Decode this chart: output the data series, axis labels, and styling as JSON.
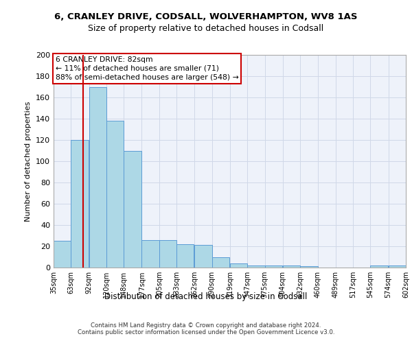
{
  "title1": "6, CRANLEY DRIVE, CODSALL, WOLVERHAMPTON, WV8 1AS",
  "title2": "Size of property relative to detached houses in Codsall",
  "xlabel": "Distribution of detached houses by size in Codsall",
  "ylabel": "Number of detached properties",
  "footer1": "Contains HM Land Registry data © Crown copyright and database right 2024.",
  "footer2": "Contains public sector information licensed under the Open Government Licence v3.0.",
  "annotation_title": "6 CRANLEY DRIVE: 82sqm",
  "annotation_line1": "← 11% of detached houses are smaller (71)",
  "annotation_line2": "88% of semi-detached houses are larger (548) →",
  "property_size": 82,
  "bar_left_edges": [
    35,
    63,
    92,
    120,
    148,
    177,
    205,
    233,
    262,
    290,
    319,
    347,
    375,
    404,
    432,
    460,
    489,
    517,
    545,
    574
  ],
  "bar_heights": [
    25,
    120,
    170,
    138,
    110,
    26,
    26,
    22,
    21,
    10,
    4,
    2,
    2,
    2,
    1,
    0,
    0,
    0,
    2,
    2
  ],
  "bin_width": 28,
  "bar_color": "#add8e6",
  "bar_edge_color": "#5b9bd5",
  "red_line_color": "#cc0000",
  "grid_color": "#d0d8e8",
  "bg_color": "#eef2fa",
  "annotation_box_color": "#ffffff",
  "annotation_border_color": "#cc0000",
  "xlim_left": 35,
  "xlim_right": 602,
  "ylim_bottom": 0,
  "ylim_top": 200,
  "yticks": [
    0,
    20,
    40,
    60,
    80,
    100,
    120,
    140,
    160,
    180,
    200
  ],
  "tick_labels": [
    "35sqm",
    "63sqm",
    "92sqm",
    "120sqm",
    "148sqm",
    "177sqm",
    "205sqm",
    "233sqm",
    "262sqm",
    "290sqm",
    "319sqm",
    "347sqm",
    "375sqm",
    "404sqm",
    "432sqm",
    "460sqm",
    "489sqm",
    "517sqm",
    "545sqm",
    "574sqm",
    "602sqm"
  ]
}
